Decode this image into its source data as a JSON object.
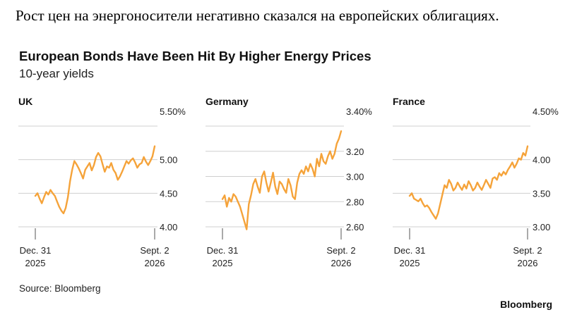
{
  "caption": "Рост цен на энергоносители негативно сказался на европейских облигациях.",
  "title": "European Bonds Have Been Hit By Higher Energy Prices",
  "subtitle": "10-year yields",
  "source": "Source: Bloomberg",
  "brand": "Bloomberg",
  "colors": {
    "line": "#F5A33A",
    "grid": "#cfcfcf",
    "text": "#222222"
  },
  "chart_data": [
    {
      "type": "line",
      "title": "UK",
      "x_ticks": [
        [
          "Dec. 31",
          "2025"
        ],
        [
          "Sept. 2",
          "2026"
        ]
      ],
      "y_ticks": [
        "5.50%",
        "5.00",
        "4.50",
        "4.00"
      ],
      "y_tick_values": [
        5.5,
        5.0,
        4.5,
        4.0
      ],
      "ylim": [
        4.0,
        5.5
      ],
      "grid": "horizontal",
      "series": [
        {
          "values": [
            4.46,
            4.5,
            4.42,
            4.35,
            4.44,
            4.52,
            4.48,
            4.55,
            4.5,
            4.46,
            4.38,
            4.3,
            4.24,
            4.2,
            4.28,
            4.44,
            4.68,
            4.85,
            4.98,
            4.93,
            4.87,
            4.8,
            4.72,
            4.85,
            4.9,
            4.95,
            4.84,
            4.92,
            5.04,
            5.1,
            5.05,
            4.93,
            4.82,
            4.9,
            4.88,
            4.95,
            4.85,
            4.8,
            4.7,
            4.75,
            4.82,
            4.9,
            4.98,
            4.94,
            4.99,
            5.02,
            4.96,
            4.88,
            4.93,
            4.95,
            5.04,
            4.97,
            4.92,
            4.98,
            5.05,
            5.2
          ]
        }
      ]
    },
    {
      "type": "line",
      "title": "Germany",
      "x_ticks": [
        [
          "Dec. 31",
          "2025"
        ],
        [
          "Sept. 2",
          "2026"
        ]
      ],
      "y_ticks": [
        "3.40%",
        "3.20",
        "3.00",
        "2.80",
        "2.60"
      ],
      "y_tick_values": [
        3.4,
        3.2,
        3.0,
        2.8,
        2.6
      ],
      "ylim": [
        2.6,
        3.4
      ],
      "grid": "horizontal",
      "series": [
        {
          "values": [
            2.82,
            2.85,
            2.76,
            2.83,
            2.8,
            2.86,
            2.84,
            2.8,
            2.76,
            2.7,
            2.64,
            2.58,
            2.78,
            2.85,
            2.94,
            2.98,
            2.92,
            2.87,
            3.0,
            3.04,
            2.95,
            2.88,
            2.95,
            3.03,
            2.92,
            2.86,
            2.96,
            2.94,
            2.9,
            2.87,
            2.98,
            2.93,
            2.84,
            2.82,
            2.95,
            3.02,
            3.05,
            3.02,
            3.08,
            3.04,
            3.1,
            3.06,
            3.0,
            3.14,
            3.08,
            3.18,
            3.12,
            3.1,
            3.16,
            3.2,
            3.14,
            3.18,
            3.26,
            3.3,
            3.36
          ]
        }
      ]
    },
    {
      "type": "line",
      "title": "France",
      "x_ticks": [
        [
          "Dec. 31",
          "2025"
        ],
        [
          "Sept. 2",
          "2026"
        ]
      ],
      "y_ticks": [
        "4.50%",
        "4.00",
        "3.50",
        "3.00"
      ],
      "y_tick_values": [
        4.5,
        4.0,
        3.5,
        3.0
      ],
      "ylim": [
        3.0,
        4.5
      ],
      "grid": "horizontal",
      "series": [
        {
          "values": [
            3.46,
            3.5,
            3.42,
            3.4,
            3.38,
            3.42,
            3.35,
            3.3,
            3.32,
            3.28,
            3.22,
            3.17,
            3.12,
            3.2,
            3.34,
            3.48,
            3.62,
            3.58,
            3.7,
            3.64,
            3.54,
            3.58,
            3.66,
            3.6,
            3.55,
            3.63,
            3.57,
            3.68,
            3.62,
            3.54,
            3.58,
            3.66,
            3.6,
            3.55,
            3.62,
            3.7,
            3.64,
            3.58,
            3.72,
            3.74,
            3.7,
            3.8,
            3.76,
            3.82,
            3.78,
            3.85,
            3.9,
            3.96,
            3.88,
            3.94,
            4.02,
            4.0,
            4.1,
            4.06,
            4.2
          ]
        }
      ]
    }
  ]
}
